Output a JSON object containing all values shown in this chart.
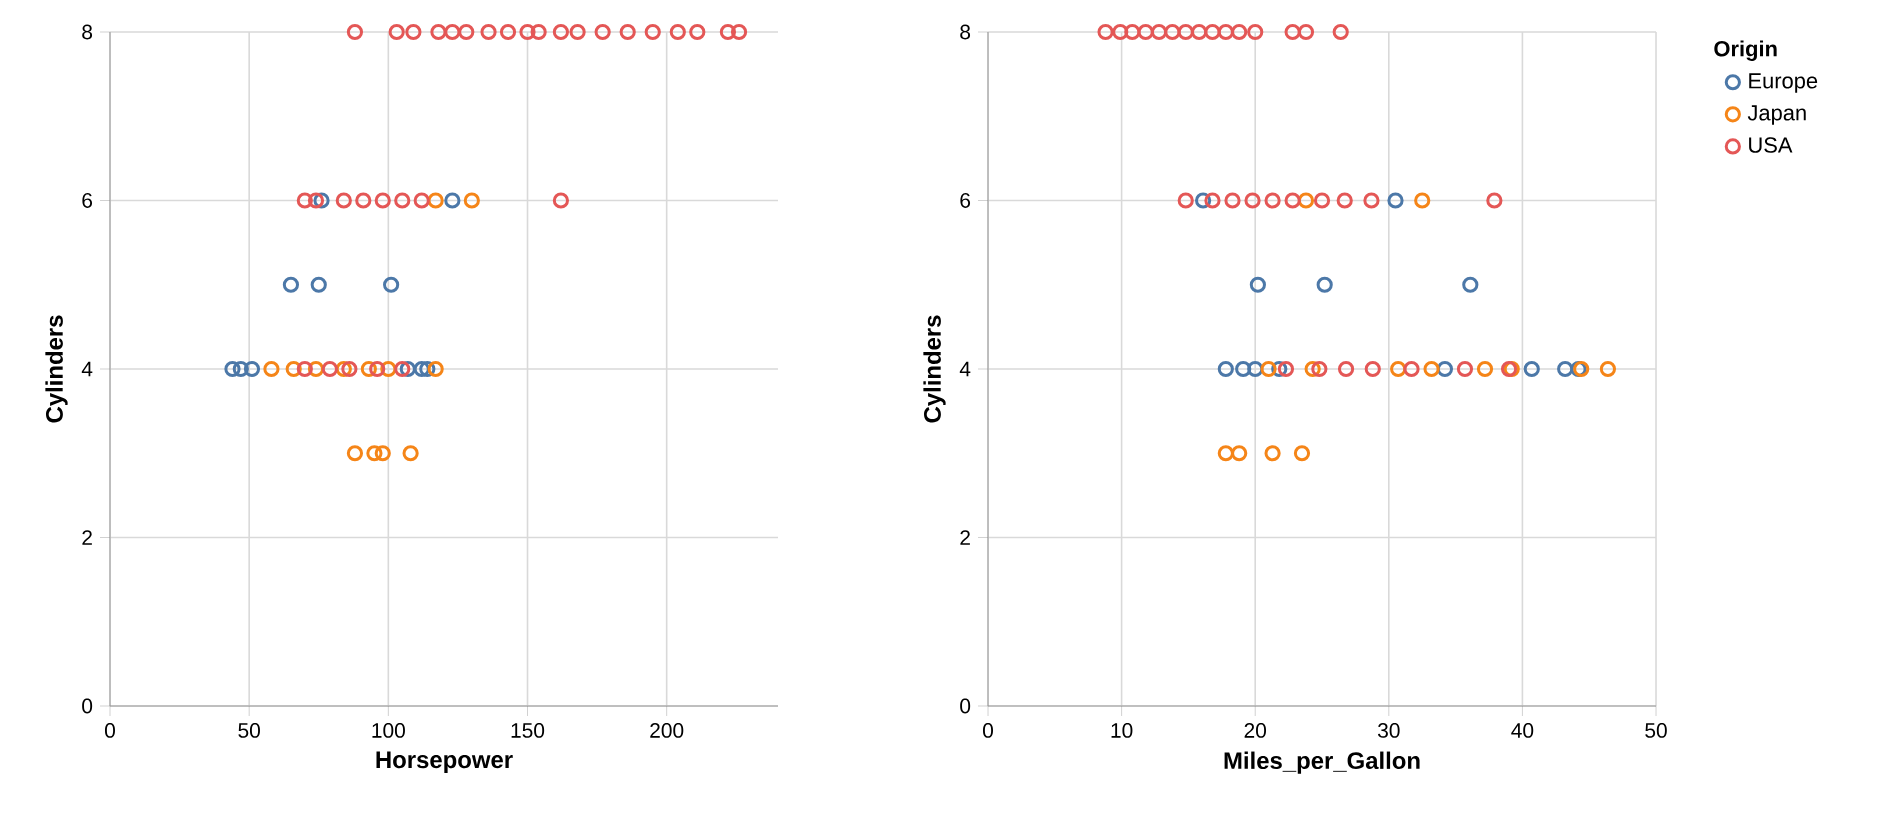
{
  "chart_data": [
    {
      "type": "scatter",
      "xlabel": "Horsepower",
      "ylabel": "Cylinders",
      "xlim": [
        0,
        240
      ],
      "xticks": [
        0,
        50,
        100,
        150,
        200
      ],
      "ylim": [
        0,
        8
      ],
      "yticks": [
        0,
        2,
        4,
        6,
        8
      ],
      "grid": true,
      "marker": "circle",
      "legend": false,
      "series": [
        {
          "color": "#4c78a8",
          "x": [
            76,
            123,
            65,
            75,
            101,
            44,
            47,
            51,
            107,
            112,
            114
          ],
          "values": [
            6,
            6,
            5,
            5,
            5,
            4,
            4,
            4,
            4,
            4,
            4
          ]
        },
        {
          "color": "#f58518",
          "x": [
            117,
            130,
            58,
            66,
            74,
            84,
            93,
            100,
            117,
            88,
            95,
            98,
            108
          ],
          "values": [
            6,
            6,
            4,
            4,
            4,
            4,
            4,
            4,
            4,
            3,
            3,
            3,
            3
          ]
        },
        {
          "color": "#e45756",
          "x": [
            88,
            103,
            109,
            118,
            123,
            128,
            136,
            143,
            150,
            154,
            162,
            168,
            177,
            186,
            195,
            204,
            211,
            222,
            226,
            70,
            74,
            84,
            91,
            98,
            105,
            112,
            162,
            70,
            79,
            86,
            96,
            105
          ],
          "values": [
            8,
            8,
            8,
            8,
            8,
            8,
            8,
            8,
            8,
            8,
            8,
            8,
            8,
            8,
            8,
            8,
            8,
            8,
            8,
            6,
            6,
            6,
            6,
            6,
            6,
            6,
            6,
            4,
            4,
            4,
            4,
            4
          ]
        }
      ]
    },
    {
      "type": "scatter",
      "xlabel": "Miles_per_Gallon",
      "ylabel": "Cylinders",
      "xlim": [
        0,
        50
      ],
      "xticks": [
        0,
        10,
        20,
        30,
        40,
        50
      ],
      "ylim": [
        0,
        8
      ],
      "yticks": [
        0,
        2,
        4,
        6,
        8
      ],
      "grid": true,
      "marker": "circle",
      "legend": "right",
      "legend_title": "Origin",
      "series": [
        {
          "name": "Europe",
          "color": "#4c78a8",
          "x": [
            16.1,
            30.5,
            20.2,
            25.2,
            36.1,
            17.8,
            19.1,
            20,
            21.8,
            34.2,
            40.7,
            43.2,
            44.2
          ],
          "values": [
            6,
            6,
            5,
            5,
            5,
            4,
            4,
            4,
            4,
            4,
            4,
            4,
            4
          ]
        },
        {
          "name": "Japan",
          "color": "#f58518",
          "x": [
            23.8,
            32.5,
            21,
            24.3,
            30.7,
            33.2,
            37.2,
            39.2,
            44.4,
            46.4,
            17.8,
            18.8,
            21.3,
            23.5
          ],
          "values": [
            6,
            6,
            4,
            4,
            4,
            4,
            4,
            4,
            4,
            4,
            3,
            3,
            3,
            3
          ]
        },
        {
          "name": "USA",
          "color": "#e45756",
          "x": [
            8.8,
            9.9,
            10.8,
            11.8,
            12.8,
            13.8,
            14.8,
            15.8,
            16.8,
            17.8,
            18.8,
            20,
            22.8,
            23.8,
            26.4,
            14.8,
            16.8,
            18.3,
            19.8,
            21.3,
            22.8,
            25,
            26.7,
            28.7,
            37.9,
            22.3,
            24.8,
            26.8,
            28.8,
            31.7,
            35.7,
            39
          ],
          "values": [
            8,
            8,
            8,
            8,
            8,
            8,
            8,
            8,
            8,
            8,
            8,
            8,
            8,
            8,
            8,
            6,
            6,
            6,
            6,
            6,
            6,
            6,
            6,
            6,
            6,
            4,
            4,
            4,
            4,
            4,
            4,
            4
          ]
        }
      ]
    }
  ]
}
